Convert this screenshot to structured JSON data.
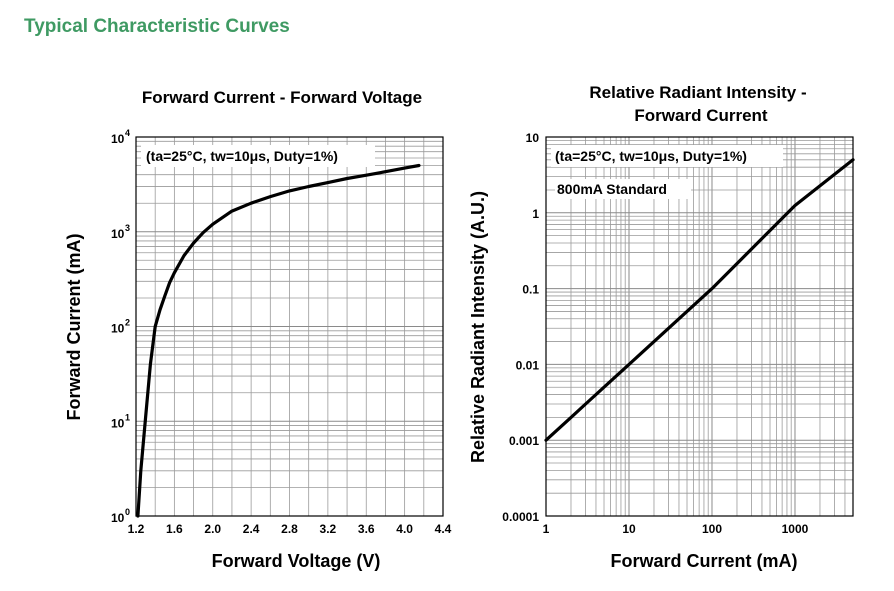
{
  "page": {
    "title": "Typical Characteristic Curves"
  },
  "chart_data": [
    {
      "type": "line",
      "title": "Forward Current - Forward Voltage",
      "xlabel": "Forward Voltage (V)",
      "ylabel": "Forward Current (mA)",
      "annotation": "(ta=25°C, tw=10μs, Duty=1%)",
      "xscale": "linear",
      "yscale": "log",
      "xlim": [
        1.2,
        4.4
      ],
      "ylim": [
        1,
        10000
      ],
      "grid": true,
      "x_ticks": [
        "1.2",
        "1.6",
        "2.0",
        "2.4",
        "2.8",
        "3.2",
        "3.6",
        "4.0",
        "4.4"
      ],
      "y_ticks": [
        {
          "base": "10",
          "exp": "0"
        },
        {
          "base": "10",
          "exp": "1"
        },
        {
          "base": "10",
          "exp": "2"
        },
        {
          "base": "10",
          "exp": "3"
        },
        {
          "base": "10",
          "exp": "4"
        }
      ],
      "x": [
        1.22,
        1.25,
        1.3,
        1.35,
        1.4,
        1.45,
        1.5,
        1.55,
        1.6,
        1.7,
        1.8,
        1.9,
        2.0,
        2.2,
        2.4,
        2.6,
        2.8,
        3.0,
        3.2,
        3.4,
        3.6,
        3.8,
        4.0,
        4.15
      ],
      "y": [
        1,
        3,
        11,
        40,
        100,
        150,
        210,
        290,
        370,
        560,
        760,
        980,
        1200,
        1650,
        2000,
        2350,
        2700,
        3000,
        3300,
        3650,
        3950,
        4300,
        4700,
        5000
      ]
    },
    {
      "type": "line",
      "title": "Relative Radiant Intensity -\nForward Current",
      "title_lines": [
        "Relative Radiant Intensity -",
        "Forward Current"
      ],
      "xlabel": "Forward Current (mA)",
      "ylabel": "Relative Radiant Intensity (A.U.)",
      "annotation": "(ta=25°C, tw=10μs, Duty=1%)",
      "annotation2": "800mA Standard",
      "xscale": "log",
      "yscale": "log",
      "xlim": [
        1,
        5000
      ],
      "ylim": [
        0.0001,
        10
      ],
      "grid": true,
      "x_ticks": [
        "1",
        "10",
        "100",
        "1000"
      ],
      "y_ticks": [
        "0.0001",
        "0.001",
        "0.01",
        "0.1",
        "1",
        "10"
      ],
      "x": [
        1,
        2,
        3,
        10,
        100,
        1000,
        5000
      ],
      "y": [
        0.001,
        0.002,
        0.003,
        0.01,
        0.1,
        1.25,
        5.0
      ]
    }
  ]
}
